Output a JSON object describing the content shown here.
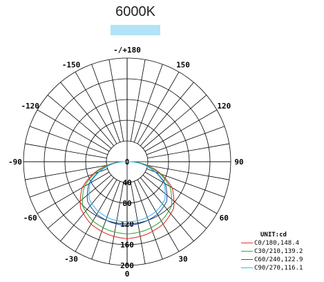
{
  "header": {
    "title": "6000K",
    "swatch_color": "#b3e3f7"
  },
  "chart_data": {
    "type": "polar",
    "unit_label": "UNIT:cd",
    "angle_labels": [
      "-/+180",
      "150",
      "120",
      "90",
      "60",
      "30",
      "0",
      "-30",
      "-60",
      "-90",
      "-120",
      "-150"
    ],
    "radial_tick_labels": [
      "0",
      "40",
      "80",
      "120",
      "160",
      "200"
    ],
    "radial_range": [
      0,
      200
    ],
    "grid": true,
    "legend_position": "bottom-right",
    "series": [
      {
        "name": "C0/180,148.4",
        "color": "#e03030",
        "peak": 148.4,
        "gamma": [
          0,
          15,
          30,
          45,
          60,
          75,
          90
        ],
        "values": [
          148.4,
          145,
          139,
          127,
          100,
          55,
          8
        ]
      },
      {
        "name": "C30/210,139.2",
        "color": "#3aa838",
        "peak": 139.2,
        "gamma": [
          0,
          15,
          30,
          45,
          60,
          75,
          90
        ],
        "values": [
          139.2,
          137,
          132,
          121,
          95,
          52,
          8
        ]
      },
      {
        "name": "C60/240,122.9",
        "color": "#2855a8",
        "peak": 122.9,
        "gamma": [
          0,
          15,
          30,
          45,
          60,
          75,
          90
        ],
        "values": [
          122.9,
          121,
          117,
          108,
          85,
          46,
          7
        ]
      },
      {
        "name": "C90/270,116.1",
        "color": "#3ab8e8",
        "peak": 116.1,
        "gamma": [
          0,
          15,
          30,
          45,
          60,
          75,
          90
        ],
        "values": [
          116.1,
          115,
          111,
          103,
          82,
          44,
          6
        ]
      }
    ]
  }
}
